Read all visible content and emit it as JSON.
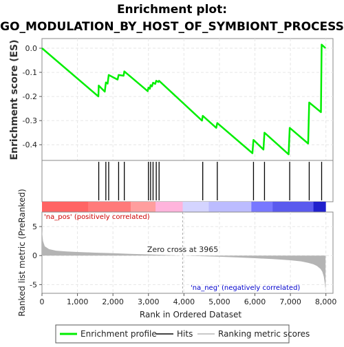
{
  "chart_data": {
    "type": "line",
    "title": "Enrichment plot:",
    "subtitle": "GO_MODULATION_BY_HOST_OF_SYMBIONT_PROCESS",
    "es_panel": {
      "ylabel": "Enrichment score (ES)",
      "ylim": [
        -0.465,
        0.04
      ],
      "yticks": [
        0.0,
        -0.1,
        -0.2,
        -0.3,
        -0.4
      ],
      "ytick_labels": [
        "0.0",
        "-0.1",
        "-0.2",
        "-0.3",
        "-0.4"
      ],
      "series": [
        {
          "name": "Enrichment profile",
          "color": "#00ee00",
          "x": [
            0,
            1590,
            1600,
            1770,
            1800,
            1850,
            1880,
            2130,
            2160,
            2300,
            2320,
            2980,
            3000,
            3040,
            3060,
            3100,
            3130,
            3190,
            3220,
            3280,
            3300,
            4510,
            4530,
            4910,
            4940,
            5930,
            5960,
            6240,
            6270,
            6950,
            6980,
            7500,
            7530,
            7860,
            7880,
            7990
          ],
          "y": [
            0.0,
            -0.2,
            -0.155,
            -0.18,
            -0.142,
            -0.147,
            -0.111,
            -0.13,
            -0.111,
            -0.114,
            -0.096,
            -0.178,
            -0.163,
            -0.168,
            -0.153,
            -0.158,
            -0.143,
            -0.148,
            -0.135,
            -0.14,
            -0.135,
            -0.3,
            -0.28,
            -0.33,
            -0.31,
            -0.435,
            -0.38,
            -0.42,
            -0.35,
            -0.44,
            -0.33,
            -0.395,
            -0.225,
            -0.265,
            0.015,
            0.0
          ]
        }
      ],
      "grid": true
    },
    "hits": {
      "legend_label": "Hits",
      "positions": [
        1600,
        1800,
        1880,
        2160,
        2320,
        3000,
        3060,
        3130,
        3220,
        3300,
        4530,
        4940,
        5960,
        6270,
        6980,
        7530,
        7880
      ]
    },
    "ranking_panel": {
      "ylabel": "Ranked list metric (PreRanked)",
      "ylim": [
        -6.5,
        7.5
      ],
      "yticks": [
        5,
        0,
        -5
      ],
      "ytick_labels": [
        "5",
        "0",
        "-5"
      ],
      "legend_label": "Ranking metric scores",
      "zero_cross_label": "Zero cross at 3965",
      "zero_cross": 3965,
      "pos_label": "'na_pos' (positively correlated)",
      "neg_label": "'na_neg' (negatively correlated)",
      "curve": {
        "x": [
          0,
          30,
          80,
          200,
          400,
          700,
          1000,
          1500,
          2000,
          2500,
          3000,
          3500,
          3965,
          4500,
          5000,
          5500,
          6000,
          6500,
          7000,
          7300,
          7500,
          7650,
          7750,
          7850,
          7900,
          7940,
          7970,
          7990
        ],
        "y": [
          4.3,
          2.5,
          1.6,
          1.1,
          0.85,
          0.7,
          0.62,
          0.5,
          0.4,
          0.3,
          0.2,
          0.1,
          0.0,
          -0.1,
          -0.2,
          -0.32,
          -0.45,
          -0.6,
          -0.8,
          -1.0,
          -1.25,
          -1.5,
          -1.8,
          -2.3,
          -2.8,
          -3.6,
          -4.8,
          -6.0
        ]
      }
    },
    "xaxis": {
      "label": "Rank in Ordered Dataset",
      "xlim": [
        0,
        8200
      ],
      "ticks": [
        0,
        1000,
        2000,
        3000,
        4000,
        5000,
        6000,
        7000,
        8000
      ],
      "tick_labels": [
        "0",
        "1,000",
        "2,000",
        "3,000",
        "4,000",
        "5,000",
        "6,000",
        "7,000",
        "8,000"
      ],
      "n": 7990
    },
    "colors": {
      "profile": "#00ee00",
      "hit": "#000000",
      "metric_fill": "#b4b4b4",
      "bar_segments": [
        "#ff6464",
        "#ff7a7a",
        "#ff9e9e",
        "#ffb4dc",
        "#d4d4ff",
        "#bcbcff",
        "#7878ff",
        "#5a5aee",
        "#2020cc"
      ]
    },
    "legend": [
      {
        "label": "Enrichment profile",
        "color": "#00ee00"
      },
      {
        "label": "Hits",
        "color": "#444444"
      },
      {
        "label": "Ranking metric scores",
        "color": "#c8c8c8"
      }
    ]
  }
}
